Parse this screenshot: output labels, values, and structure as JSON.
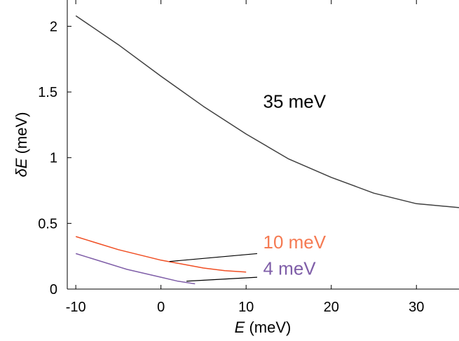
{
  "chart_data": {
    "type": "line",
    "xlabel_italic": "E",
    "xlabel_unit": " (meV)",
    "ylabel_italic": "δE",
    "ylabel_unit": " (meV)",
    "xlim": [
      -11,
      35
    ],
    "ylim": [
      0,
      2.2
    ],
    "xticks": [
      -10,
      0,
      10,
      20,
      30
    ],
    "xtick_labels": [
      "-10",
      "0",
      "10",
      "20",
      "30"
    ],
    "yticks": [
      0,
      0.5,
      1,
      1.5,
      2
    ],
    "ytick_labels": [
      "0",
      "0.5",
      "1",
      "1.5",
      "2"
    ],
    "grid": false,
    "series": [
      {
        "name": "35 meV",
        "color": "#404040",
        "x": [
          -10,
          -5,
          0,
          5,
          10,
          15,
          20,
          25,
          30,
          35
        ],
        "y": [
          2.08,
          1.86,
          1.62,
          1.39,
          1.18,
          0.99,
          0.85,
          0.73,
          0.65,
          0.62
        ]
      },
      {
        "name": "10 meV",
        "color": "#f04e23",
        "x": [
          -10,
          -7.5,
          -5,
          -2.5,
          0,
          2.5,
          5,
          7.5,
          10
        ],
        "y": [
          0.4,
          0.35,
          0.3,
          0.26,
          0.22,
          0.19,
          0.16,
          0.14,
          0.13
        ]
      },
      {
        "name": "4 meV",
        "color": "#7f5ea8",
        "x": [
          -10,
          -8,
          -6,
          -4,
          -2,
          0,
          2,
          4
        ],
        "y": [
          0.27,
          0.23,
          0.19,
          0.15,
          0.12,
          0.09,
          0.06,
          0.04
        ]
      }
    ],
    "annotations": [
      {
        "text": "35 meV",
        "color": "#000000",
        "x": 12,
        "y": 1.38,
        "size": 26
      },
      {
        "text": "10 meV",
        "color": "#f57a52",
        "x": 12,
        "y": 0.31,
        "size": 26
      },
      {
        "text": "4 meV",
        "color": "#7f5ea8",
        "x": 12,
        "y": 0.11,
        "size": 26
      }
    ],
    "leader_lines": [
      {
        "from": [
          1,
          0.21
        ],
        "to": [
          11.3,
          0.27
        ]
      },
      {
        "from": [
          3,
          0.06
        ],
        "to": [
          11.3,
          0.09
        ]
      }
    ]
  }
}
